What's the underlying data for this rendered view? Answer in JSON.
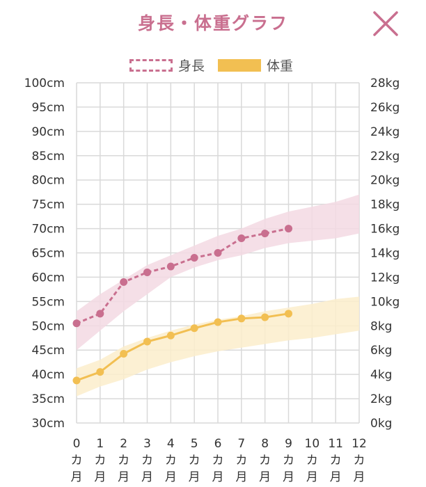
{
  "header": {
    "title": "身長・体重グラフ",
    "close_icon": "close-icon"
  },
  "colors": {
    "height": "#c96f8f",
    "height_band": "#f3d9e3",
    "weight": "#f2bf52",
    "weight_band": "#fbedcb",
    "grid": "#d9d9d9",
    "title": "#c96f8f"
  },
  "chart_data": {
    "type": "line",
    "title": "身長・体重グラフ",
    "x": [
      "0",
      "1",
      "2",
      "3",
      "4",
      "5",
      "6",
      "7",
      "8",
      "9",
      "10",
      "11",
      "12"
    ],
    "x_unit_chars": [
      "カ",
      "月"
    ],
    "xlim": [
      0,
      12
    ],
    "y_left": {
      "unit": "cm",
      "lim": [
        30,
        100
      ],
      "step": 5
    },
    "y_right": {
      "unit": "kg",
      "lim": [
        0,
        28
      ],
      "step": 2
    },
    "grid": true,
    "legend": {
      "position": "top-center",
      "entries": [
        "身長",
        "体重"
      ]
    },
    "series": [
      {
        "name": "身長",
        "axis": "left",
        "style": "dashed",
        "x": [
          0,
          1,
          2,
          3,
          4,
          5,
          6,
          7,
          8,
          9
        ],
        "values": [
          50.5,
          52.5,
          59,
          61,
          62.2,
          64,
          65,
          68,
          69,
          70
        ],
        "band": {
          "x": [
            0,
            1,
            2,
            3,
            4,
            5,
            6,
            7,
            8,
            9,
            10,
            11,
            12
          ],
          "lower": [
            45,
            49,
            53,
            56.5,
            60,
            62,
            63.5,
            64.5,
            66,
            67,
            67.5,
            68,
            69
          ],
          "upper": [
            53,
            56.5,
            59.5,
            62.5,
            64.5,
            66.5,
            68.5,
            70,
            72,
            73.5,
            74.5,
            75.5,
            77
          ]
        }
      },
      {
        "name": "体重",
        "axis": "right",
        "style": "solid",
        "x": [
          0,
          1,
          2,
          3,
          4,
          5,
          6,
          7,
          8,
          9
        ],
        "values": [
          3.5,
          4.2,
          5.7,
          6.7,
          7.2,
          7.8,
          8.3,
          8.6,
          8.7,
          9
        ],
        "band": {
          "x": [
            0,
            1,
            2,
            3,
            4,
            5,
            6,
            7,
            8,
            9,
            10,
            11,
            12
          ],
          "lower": [
            2.2,
            3,
            3.6,
            4.4,
            5,
            5.5,
            5.9,
            6.2,
            6.5,
            6.8,
            7,
            7.3,
            7.6
          ],
          "upper": [
            4.5,
            5.2,
            6.3,
            7,
            7.6,
            8.1,
            8.5,
            8.8,
            9.2,
            9.5,
            9.8,
            10.2,
            10.4
          ]
        }
      }
    ]
  }
}
